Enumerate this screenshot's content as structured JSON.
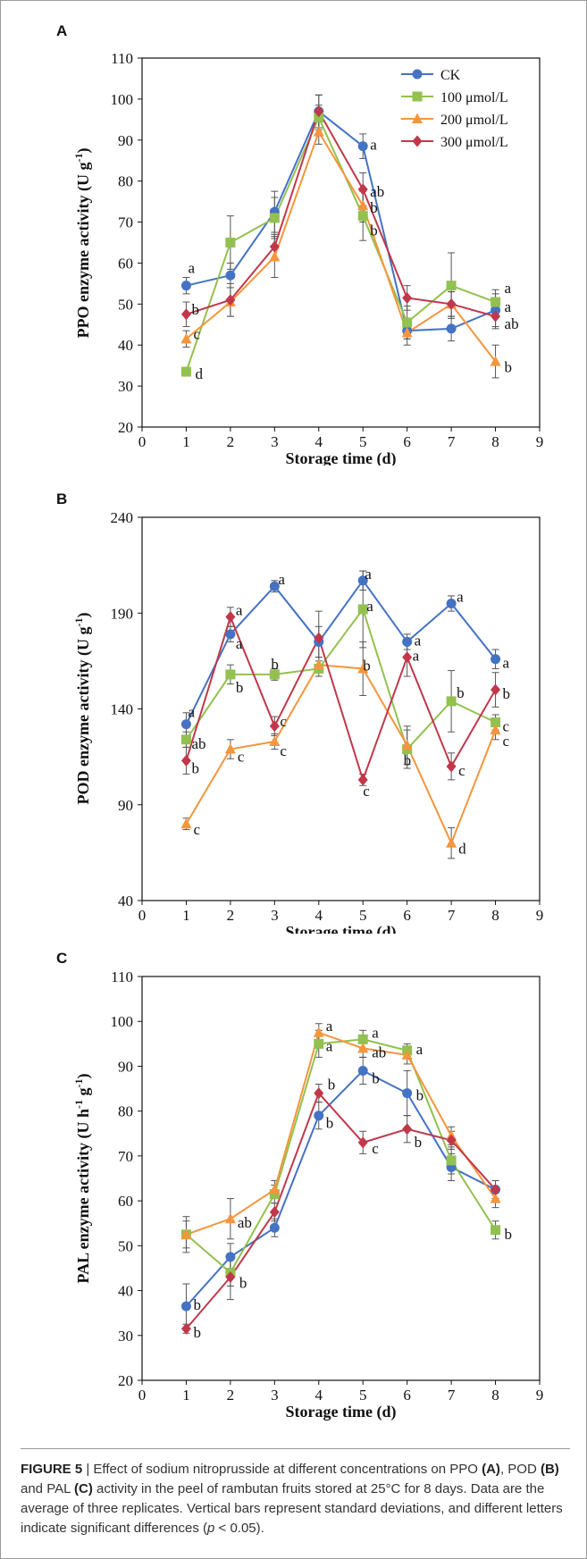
{
  "colors": {
    "CK": "#4472C4",
    "100": "#92C14F",
    "200": "#F5953C",
    "300": "#C0384A"
  },
  "legend": [
    "CK",
    "100 μmol/L",
    "200 μmol/L",
    "300 μmol/L"
  ],
  "chart_data": [
    {
      "panel": "A",
      "type": "line",
      "x": [
        1,
        2,
        3,
        4,
        5,
        6,
        7,
        8
      ],
      "xlabel": "Storage time (d)",
      "ylabel_main": "PPO enzyme activity (U g",
      "ylabel_sup": "-1",
      "ylabel_end": ")",
      "xlim": [
        0,
        9
      ],
      "ylim": [
        20,
        110
      ],
      "yticks": [
        20,
        30,
        40,
        50,
        60,
        70,
        80,
        90,
        100,
        110
      ],
      "legend_position": "top-right",
      "series": [
        {
          "name": "CK",
          "values": [
            54.5,
            57.0,
            72.5,
            97.0,
            88.5,
            43.5,
            44.0,
            48.5
          ],
          "errors": [
            2,
            3,
            5,
            4,
            3,
            2,
            3,
            4
          ]
        },
        {
          "name": "100 μmol/L",
          "values": [
            33.5,
            65.0,
            71.0,
            95.5,
            71.5,
            45.5,
            54.5,
            50.5
          ],
          "errors": [
            1,
            6.5,
            5,
            3,
            6,
            4,
            8,
            3
          ]
        },
        {
          "name": "200 μmol/L",
          "values": [
            41.5,
            50.5,
            61.5,
            92.0,
            74.0,
            43.0,
            50.0,
            36.0
          ],
          "errors": [
            2,
            3.5,
            5,
            3,
            4,
            3,
            3,
            4
          ]
        },
        {
          "name": "300 μmol/L",
          "values": [
            47.5,
            51.0,
            64.0,
            97.0,
            78.0,
            51.5,
            50.0,
            47.0
          ],
          "errors": [
            3,
            4,
            3,
            4,
            4,
            3,
            3,
            3
          ]
        }
      ],
      "letters": [
        {
          "series": 0,
          "point": 0,
          "text": "a",
          "dx": 2,
          "dy": -20
        },
        {
          "series": 3,
          "point": 0,
          "text": "b",
          "dx": 6,
          "dy": -6
        },
        {
          "series": 2,
          "point": 0,
          "text": "c",
          "dx": 8,
          "dy": -6
        },
        {
          "series": 1,
          "point": 0,
          "text": "d",
          "dx": 10,
          "dy": 2
        },
        {
          "series": 0,
          "point": 4,
          "text": "a",
          "dx": 8,
          "dy": -2
        },
        {
          "series": 3,
          "point": 4,
          "text": "ab",
          "dx": 8,
          "dy": 2
        },
        {
          "series": 2,
          "point": 4,
          "text": "b",
          "dx": 8,
          "dy": 2
        },
        {
          "series": 1,
          "point": 4,
          "text": "b",
          "dx": 8,
          "dy": 16
        },
        {
          "series": 1,
          "point": 7,
          "text": "a",
          "dx": 10,
          "dy": -16
        },
        {
          "series": 0,
          "point": 7,
          "text": "a",
          "dx": 10,
          "dy": -4
        },
        {
          "series": 3,
          "point": 7,
          "text": "ab",
          "dx": 10,
          "dy": 8
        },
        {
          "series": 2,
          "point": 7,
          "text": "b",
          "dx": 10,
          "dy": 6
        }
      ]
    },
    {
      "panel": "B",
      "type": "line",
      "x": [
        1,
        2,
        3,
        4,
        5,
        6,
        7,
        8
      ],
      "xlabel": "Storage time (d)",
      "ylabel_main": "POD enzyme activity (U g",
      "ylabel_sup": "-1",
      "ylabel_end": ")",
      "xlim": [
        0,
        9
      ],
      "ylim": [
        40,
        240
      ],
      "yticks": [
        40,
        90,
        140,
        190,
        240
      ],
      "series": [
        {
          "name": "CK",
          "values": [
            132,
            179,
            204,
            175,
            207,
            175,
            195,
            166
          ],
          "errors": [
            6,
            4,
            3,
            8,
            5,
            4,
            4,
            5
          ]
        },
        {
          "name": "100 μmol/L",
          "values": [
            124,
            158,
            158,
            161,
            192,
            119,
            144,
            133
          ],
          "errors": [
            4,
            5,
            3,
            4,
            20,
            10,
            16,
            4
          ]
        },
        {
          "name": "200 μmol/L",
          "values": [
            80,
            119,
            123,
            163,
            161,
            121,
            70,
            129
          ],
          "errors": [
            3,
            5,
            4,
            4,
            14,
            10,
            8,
            5
          ]
        },
        {
          "name": "300 μmol/L",
          "values": [
            113,
            188,
            131,
            177,
            103,
            167,
            110,
            150
          ],
          "errors": [
            7,
            5,
            5,
            14,
            3,
            10,
            7,
            9
          ]
        }
      ],
      "letters": [
        {
          "series": 0,
          "point": 0,
          "text": "a",
          "dx": 2,
          "dy": -14
        },
        {
          "series": 1,
          "point": 0,
          "text": "ab",
          "dx": 6,
          "dy": 4
        },
        {
          "series": 3,
          "point": 0,
          "text": "b",
          "dx": 6,
          "dy": 8
        },
        {
          "series": 2,
          "point": 0,
          "text": "c",
          "dx": 8,
          "dy": 6
        },
        {
          "series": 3,
          "point": 1,
          "text": "a",
          "dx": 6,
          "dy": -8
        },
        {
          "series": 0,
          "point": 1,
          "text": "a",
          "dx": 6,
          "dy": 10
        },
        {
          "series": 1,
          "point": 1,
          "text": "b",
          "dx": 6,
          "dy": 14
        },
        {
          "series": 2,
          "point": 1,
          "text": "c",
          "dx": 8,
          "dy": 8
        },
        {
          "series": 0,
          "point": 2,
          "text": "a",
          "dx": 4,
          "dy": -8
        },
        {
          "series": 1,
          "point": 2,
          "text": "b",
          "dx": -4,
          "dy": -12
        },
        {
          "series": 3,
          "point": 2,
          "text": "c",
          "dx": 6,
          "dy": -6
        },
        {
          "series": 2,
          "point": 2,
          "text": "c",
          "dx": 6,
          "dy": 10
        },
        {
          "series": 0,
          "point": 4,
          "text": "a",
          "dx": 2,
          "dy": -8
        },
        {
          "series": 1,
          "point": 4,
          "text": "a",
          "dx": 4,
          "dy": -4
        },
        {
          "series": 2,
          "point": 4,
          "text": "b",
          "dx": 0,
          "dy": -4
        },
        {
          "series": 3,
          "point": 4,
          "text": "c",
          "dx": 0,
          "dy": 12
        },
        {
          "series": 0,
          "point": 5,
          "text": "a",
          "dx": 8,
          "dy": -2
        },
        {
          "series": 3,
          "point": 5,
          "text": "a",
          "dx": 6,
          "dy": -2
        },
        {
          "series": 1,
          "point": 5,
          "text": "b",
          "dx": -4,
          "dy": 12
        },
        {
          "series": 0,
          "point": 6,
          "text": "a",
          "dx": 6,
          "dy": -8
        },
        {
          "series": 1,
          "point": 6,
          "text": "b",
          "dx": 6,
          "dy": -10
        },
        {
          "series": 3,
          "point": 6,
          "text": "c",
          "dx": 8,
          "dy": 4
        },
        {
          "series": 2,
          "point": 6,
          "text": "d",
          "dx": 8,
          "dy": 6
        },
        {
          "series": 0,
          "point": 7,
          "text": "a",
          "dx": 8,
          "dy": 4
        },
        {
          "series": 3,
          "point": 7,
          "text": "b",
          "dx": 8,
          "dy": 4
        },
        {
          "series": 1,
          "point": 7,
          "text": "c",
          "dx": 8,
          "dy": 4
        },
        {
          "series": 2,
          "point": 7,
          "text": "c",
          "dx": 8,
          "dy": 12
        }
      ]
    },
    {
      "panel": "C",
      "type": "line",
      "x": [
        1,
        2,
        3,
        4,
        5,
        6,
        7,
        8
      ],
      "xlabel": "Storage time (d)",
      "ylabel_main": "PAL enzyme activity (U h",
      "ylabel_sup": "-1",
      "ylabel_mid": " g",
      "ylabel_sup2": "-1",
      "ylabel_end": ")",
      "xlim": [
        0,
        9
      ],
      "ylim": [
        20,
        110
      ],
      "yticks": [
        20,
        30,
        40,
        50,
        60,
        70,
        80,
        90,
        100,
        110
      ],
      "series": [
        {
          "name": "CK",
          "values": [
            36.5,
            47.5,
            54.0,
            79.0,
            89.0,
            84.0,
            67.5,
            62.5
          ],
          "errors": [
            5,
            3,
            2,
            3,
            3,
            5,
            3,
            2
          ]
        },
        {
          "name": "100 μmol/L",
          "values": [
            52.5,
            44.0,
            61.5,
            95.0,
            96.0,
            93.5,
            69.0,
            53.5
          ],
          "errors": [
            3,
            3,
            2,
            3,
            2,
            1.5,
            3,
            2
          ]
        },
        {
          "name": "200 μmol/L",
          "values": [
            52.5,
            56.0,
            62.5,
            97.5,
            94.0,
            92.5,
            74.5,
            60.5
          ],
          "errors": [
            4,
            4.5,
            2,
            2,
            2,
            2,
            2,
            2
          ]
        },
        {
          "name": "300 μmol/L",
          "values": [
            31.5,
            43.0,
            57.5,
            84.0,
            73.0,
            76.0,
            73.5,
            62.5
          ],
          "errors": [
            1,
            5,
            2,
            2,
            2.5,
            3,
            2,
            2
          ]
        }
      ],
      "letters": [
        {
          "series": 0,
          "point": 0,
          "text": "b",
          "dx": 8,
          "dy": -2
        },
        {
          "series": 3,
          "point": 0,
          "text": "b",
          "dx": 8,
          "dy": 4
        },
        {
          "series": 2,
          "point": 1,
          "text": "ab",
          "dx": 8,
          "dy": 4
        },
        {
          "series": 3,
          "point": 1,
          "text": "b",
          "dx": 10,
          "dy": 6
        },
        {
          "series": 2,
          "point": 3,
          "text": "a",
          "dx": 8,
          "dy": -8
        },
        {
          "series": 1,
          "point": 3,
          "text": "a",
          "dx": 8,
          "dy": 2
        },
        {
          "series": 3,
          "point": 3,
          "text": "b",
          "dx": 10,
          "dy": -10
        },
        {
          "series": 0,
          "point": 3,
          "text": "b",
          "dx": 8,
          "dy": 8
        },
        {
          "series": 1,
          "point": 4,
          "text": "a",
          "dx": 10,
          "dy": -8
        },
        {
          "series": 2,
          "point": 4,
          "text": "ab",
          "dx": 10,
          "dy": 4
        },
        {
          "series": 0,
          "point": 4,
          "text": "b",
          "dx": 10,
          "dy": 8
        },
        {
          "series": 3,
          "point": 4,
          "text": "c",
          "dx": 10,
          "dy": 6
        },
        {
          "series": 1,
          "point": 5,
          "text": "a",
          "dx": 10,
          "dy": -2
        },
        {
          "series": 0,
          "point": 5,
          "text": "b",
          "dx": 10,
          "dy": 2
        },
        {
          "series": 3,
          "point": 5,
          "text": "b",
          "dx": 8,
          "dy": 14
        },
        {
          "series": 1,
          "point": 7,
          "text": "b",
          "dx": 10,
          "dy": 4
        }
      ]
    }
  ],
  "caption": {
    "label": "FIGURE 5",
    "sep": " | ",
    "t1": "Effect of sodium nitroprusside at different concentrations on PPO ",
    "a": "(A)",
    "t2": ", POD ",
    "b": "(B)",
    "t3": " and PAL ",
    "c": "(C)",
    "t4": " activity in the peel of rambutan fruits stored at 25°C for 8 days. Data are the average of three replicates. Vertical bars represent standard deviations, and different letters indicate significant differences (",
    "p": "p",
    "t5": " < 0.05)."
  }
}
